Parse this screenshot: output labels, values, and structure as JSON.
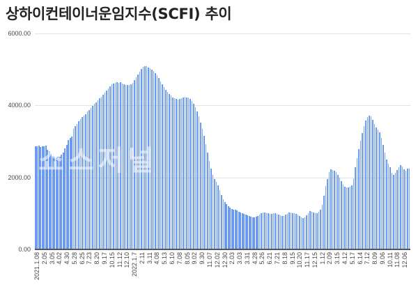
{
  "title": "상하이컨테이너운임지수(SCFI) 추이",
  "watermark": "쇼스저널",
  "chart_data": {
    "type": "bar",
    "title": "상하이컨테이너운임지수(SCFI) 추이",
    "xlabel": "",
    "ylabel": "",
    "ylim": [
      0,
      6000
    ],
    "y_ticks": [
      "0.00",
      "2000.00",
      "4000.00",
      "6000.00"
    ],
    "grid": true,
    "legend": "none",
    "bar_color": "#5b8ff0",
    "x_tick_labels": [
      "2021.1.08",
      "2.05",
      "3.05",
      "4.02",
      "4.30",
      "5.28",
      "6.25",
      "7.23",
      "8.20",
      "9.17",
      "10.15",
      "11.12",
      "12.10",
      "2022.1.7",
      "2.11",
      "3.11",
      "4.08",
      "5.13",
      "6.10",
      "7.08",
      "8.05",
      "9.02",
      "9.30",
      "11.07",
      "12.02",
      "12.30",
      "2.03",
      "3.03",
      "3.31",
      "4.28",
      "5.26",
      "6.21",
      "7.21",
      "8.18",
      "9.15",
      "10.20",
      "11.17",
      "12.15",
      "1.12",
      "2.09",
      "3.15",
      "4.12",
      "5.17",
      "6.14",
      "7.12",
      "8.09",
      "9.06",
      "10.11",
      "11.08",
      "12.06"
    ],
    "values": [
      2870,
      2860,
      2880,
      2850,
      2870,
      2860,
      2880,
      2770,
      2720,
      2650,
      2600,
      2570,
      2560,
      2570,
      2580,
      2640,
      2700,
      2800,
      2900,
      3040,
      3090,
      3140,
      3350,
      3420,
      3480,
      3560,
      3620,
      3680,
      3720,
      3760,
      3830,
      3880,
      3930,
      3980,
      4040,
      4090,
      4150,
      4200,
      4240,
      4300,
      4360,
      4420,
      4480,
      4530,
      4580,
      4610,
      4620,
      4640,
      4630,
      4640,
      4610,
      4590,
      4570,
      4560,
      4570,
      4580,
      4620,
      4700,
      4780,
      4860,
      4940,
      5010,
      5080,
      5100,
      5090,
      5060,
      5030,
      4990,
      4950,
      4900,
      4830,
      4760,
      4660,
      4590,
      4510,
      4440,
      4380,
      4320,
      4270,
      4220,
      4200,
      4180,
      4170,
      4180,
      4200,
      4210,
      4230,
      4220,
      4210,
      4180,
      4130,
      4050,
      3950,
      3830,
      3700,
      3530,
      3350,
      3150,
      2930,
      2700,
      2460,
      2240,
      2070,
      1960,
      1880,
      1780,
      1650,
      1510,
      1400,
      1320,
      1250,
      1200,
      1160,
      1130,
      1110,
      1100,
      1080,
      1050,
      1030,
      1010,
      990,
      970,
      950,
      930,
      910,
      900,
      900,
      910,
      930,
      960,
      1000,
      1020,
      1030,
      1010,
      1000,
      990,
      980,
      1000,
      1010,
      980,
      960,
      940,
      920,
      930,
      960,
      990,
      1020,
      1030,
      1010,
      1000,
      990,
      960,
      930,
      900,
      880,
      890,
      940,
      1010,
      1060,
      1040,
      1020,
      1000,
      1010,
      1050,
      1110,
      1240,
      1500,
      1760,
      1960,
      2150,
      2220,
      2200,
      2180,
      2150,
      2080,
      2000,
      1900,
      1800,
      1750,
      1720,
      1720,
      1740,
      1790,
      1960,
      2280,
      2540,
      2780,
      3020,
      3230,
      3430,
      3580,
      3680,
      3720,
      3700,
      3600,
      3480,
      3380,
      3320,
      3260,
      3100,
      2900,
      2700,
      2500,
      2380,
      2280,
      2130,
      2080,
      2120,
      2200,
      2290,
      2340,
      2300,
      2220,
      2180,
      2240,
      2250
    ],
    "series": [
      {
        "name": "SCFI",
        "values": "see values"
      }
    ]
  },
  "y_axis": {
    "ticks": [
      {
        "label": "6000.00",
        "value": 6000
      },
      {
        "label": "4000.00",
        "value": 4000
      },
      {
        "label": "2000.00",
        "value": 2000
      },
      {
        "label": "0.00",
        "value": 0
      }
    ]
  }
}
